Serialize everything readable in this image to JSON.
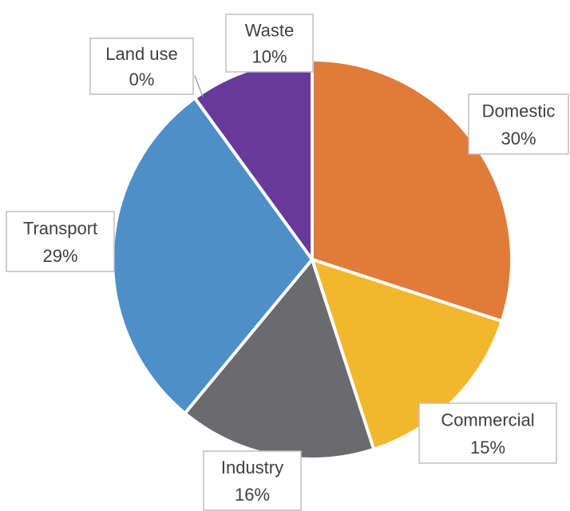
{
  "chart_data": {
    "type": "pie",
    "categories": [
      "Domestic",
      "Commercial",
      "Industry",
      "Transport",
      "Land use",
      "Waste"
    ],
    "values": [
      30,
      15,
      16,
      29,
      0,
      10
    ],
    "value_labels": [
      "30%",
      "15%",
      "16%",
      "29%",
      "0%",
      "10%"
    ],
    "colors": [
      "#e07b39",
      "#f2b72c",
      "#6b6a6e",
      "#4e8fc8",
      "#a5a5a5",
      "#673a99"
    ]
  }
}
